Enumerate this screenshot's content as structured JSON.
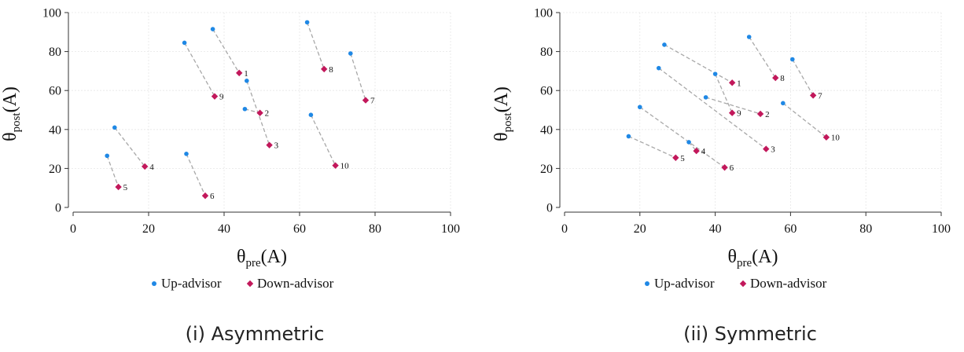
{
  "legend": {
    "up_label": "Up-advisor",
    "down_label": "Down-advisor"
  },
  "colors": {
    "up": "#1f88e5",
    "down": "#c2185b"
  },
  "chart_data": [
    {
      "type": "scatter",
      "caption": "(i) Asymmetric",
      "xlabel_main": "θ",
      "xlabel_sub": "pre",
      "xlabel_tail": "(A)",
      "ylabel_main": "θ",
      "ylabel_sub": "post",
      "ylabel_tail": "(A)",
      "xlim": [
        0,
        100
      ],
      "ylim": [
        0,
        100
      ],
      "xticks": [
        0,
        20,
        40,
        60,
        80,
        100
      ],
      "yticks": [
        0,
        20,
        40,
        60,
        80,
        100
      ],
      "grid": true,
      "pairs": [
        {
          "label": "1",
          "up": [
            37,
            91.5
          ],
          "down": [
            44,
            69
          ]
        },
        {
          "label": "2",
          "up": [
            45.5,
            50.5
          ],
          "down": [
            49.5,
            48.5
          ]
        },
        {
          "label": "3",
          "up": [
            46,
            65
          ],
          "down": [
            52,
            32
          ]
        },
        {
          "label": "4",
          "up": [
            11,
            41
          ],
          "down": [
            19,
            21
          ]
        },
        {
          "label": "5",
          "up": [
            9,
            26.5
          ],
          "down": [
            12,
            10.5
          ]
        },
        {
          "label": "6",
          "up": [
            30,
            27.5
          ],
          "down": [
            35,
            6
          ]
        },
        {
          "label": "7",
          "up": [
            73.5,
            79
          ],
          "down": [
            77.5,
            55
          ]
        },
        {
          "label": "8",
          "up": [
            62,
            95
          ],
          "down": [
            66.5,
            71
          ]
        },
        {
          "label": "9",
          "up": [
            29.5,
            84.5
          ],
          "down": [
            37.5,
            57
          ]
        },
        {
          "label": "10",
          "up": [
            63,
            47.5
          ],
          "down": [
            69.5,
            21.5
          ]
        }
      ]
    },
    {
      "type": "scatter",
      "caption": "(ii) Symmetric",
      "xlabel_main": "θ",
      "xlabel_sub": "pre",
      "xlabel_tail": "(A)",
      "ylabel_main": "θ",
      "ylabel_sub": "post",
      "ylabel_tail": "(A)",
      "xlim": [
        0,
        100
      ],
      "ylim": [
        0,
        100
      ],
      "xticks": [
        0,
        20,
        40,
        60,
        80,
        100
      ],
      "yticks": [
        0,
        20,
        40,
        60,
        80,
        100
      ],
      "grid": true,
      "pairs": [
        {
          "label": "1",
          "up": [
            26.5,
            83.5
          ],
          "down": [
            44.5,
            64
          ]
        },
        {
          "label": "2",
          "up": [
            37.5,
            56.5
          ],
          "down": [
            52,
            48
          ]
        },
        {
          "label": "3",
          "up": [
            25,
            71.5
          ],
          "down": [
            53.5,
            30
          ]
        },
        {
          "label": "4",
          "up": [
            33,
            33.5
          ],
          "down": [
            35,
            29
          ]
        },
        {
          "label": "5",
          "up": [
            17,
            36.5
          ],
          "down": [
            29.5,
            25.5
          ]
        },
        {
          "label": "6",
          "up": [
            20,
            51.5
          ],
          "down": [
            42.5,
            20.5
          ]
        },
        {
          "label": "7",
          "up": [
            60.5,
            76
          ],
          "down": [
            66,
            57.5
          ]
        },
        {
          "label": "8",
          "up": [
            49,
            87.5
          ],
          "down": [
            56,
            66.5
          ]
        },
        {
          "label": "9",
          "up": [
            40,
            68.5
          ],
          "down": [
            44.5,
            48.5
          ]
        },
        {
          "label": "10",
          "up": [
            58,
            53.5
          ],
          "down": [
            69.5,
            36
          ]
        }
      ]
    }
  ]
}
